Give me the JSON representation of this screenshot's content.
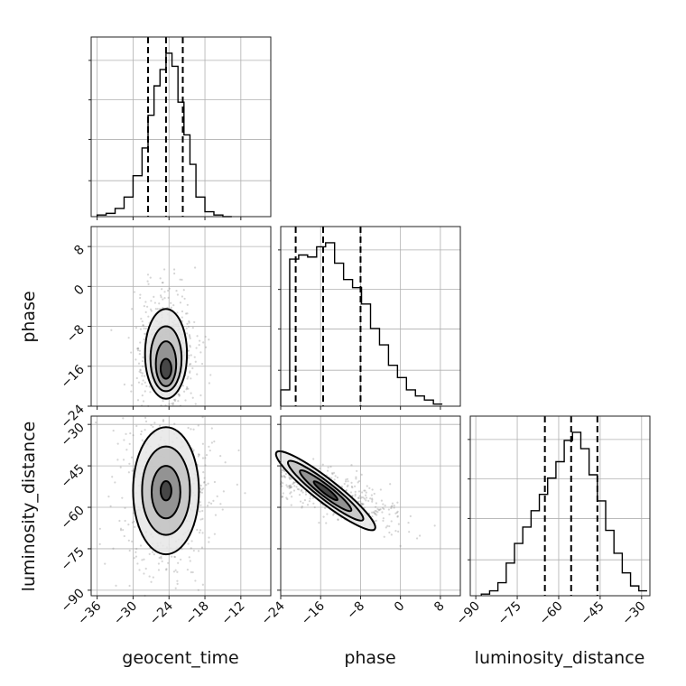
{
  "chart_data": {
    "type": "corner",
    "parameters": [
      "geocent_time",
      "phase",
      "luminosity_distance"
    ],
    "axis_labels": {
      "geocent_time": "geocent_time",
      "phase": "phase",
      "luminosity_distance": "luminosity_distance"
    },
    "ranges": {
      "geocent_time": [
        -37,
        -7
      ],
      "phase": [
        -24,
        12
      ],
      "luminosity_distance": [
        -92,
        -27
      ]
    },
    "ticks": {
      "geocent_time": [
        "−36",
        "−30",
        "−24",
        "−18",
        "−12"
      ],
      "phase": [
        "−24",
        "−16",
        "−8",
        "0",
        "8"
      ],
      "luminosity_distance": [
        "−90",
        "−75",
        "−60",
        "−45",
        "−30"
      ]
    },
    "tick_values": {
      "geocent_time": [
        -36,
        -30,
        -24,
        -18,
        -12
      ],
      "phase": [
        -24,
        -16,
        -8,
        0,
        8
      ],
      "luminosity_distance": [
        -90,
        -75,
        -60,
        -45,
        -30
      ]
    },
    "quantiles": {
      "geocent_time": [
        -27.5,
        -24.5,
        -21.7
      ],
      "phase": [
        -21.0,
        -15.5,
        -8.0
      ],
      "luminosity_distance": [
        -65.0,
        -55.5,
        -46.0
      ]
    },
    "histograms": {
      "geocent_time": {
        "bins": [
          -36,
          -34.5,
          -33,
          -31.5,
          -30,
          -28.5,
          -27.5,
          -26.5,
          -25.5,
          -24.5,
          -23.5,
          -22.5,
          -21.5,
          -20.5,
          -19.5,
          -18,
          -16.5,
          -15,
          -13.5
        ],
        "counts": [
          0.01,
          0.02,
          0.05,
          0.12,
          0.25,
          0.42,
          0.62,
          0.8,
          0.9,
          1.0,
          0.92,
          0.7,
          0.5,
          0.32,
          0.12,
          0.03,
          0.01,
          0.0
        ]
      },
      "phase": {
        "bins": [
          -24,
          -22.2,
          -20.4,
          -18.6,
          -16.8,
          -15,
          -13.2,
          -11.4,
          -9.6,
          -7.8,
          -6,
          -4.2,
          -2.4,
          -0.6,
          1.2,
          3.0,
          4.8,
          6.6,
          8.4
        ],
        "counts": [
          0.08,
          0.72,
          0.74,
          0.73,
          0.78,
          0.8,
          0.7,
          0.62,
          0.58,
          0.5,
          0.38,
          0.3,
          0.2,
          0.14,
          0.08,
          0.05,
          0.03,
          0.01
        ]
      },
      "luminosity_distance": {
        "bins": [
          -88,
          -85,
          -82,
          -79,
          -76,
          -73,
          -70,
          -67,
          -64,
          -61,
          -58,
          -55,
          -52,
          -49,
          -46,
          -43,
          -40,
          -37,
          -34,
          -31,
          -28
        ],
        "counts": [
          0.01,
          0.03,
          0.08,
          0.2,
          0.32,
          0.42,
          0.52,
          0.62,
          0.72,
          0.82,
          0.95,
          1.0,
          0.9,
          0.74,
          0.58,
          0.4,
          0.26,
          0.14,
          0.06,
          0.03
        ]
      }
    },
    "joint": [
      {
        "x": "geocent_time",
        "y": "phase",
        "center": [
          -24.5,
          -15.0
        ],
        "levels": [
          {
            "rx": 3.5,
            "ry": 9.0,
            "cy": -13.5
          },
          {
            "rx": 2.6,
            "ry": 6.5,
            "cy": -14.5
          },
          {
            "rx": 1.7,
            "ry": 4.5,
            "cy": -15.5
          },
          {
            "rx": 0.9,
            "ry": 2.0,
            "cy": -16.5
          }
        ]
      },
      {
        "x": "geocent_time",
        "y": "luminosity_distance",
        "center": [
          -24.5,
          -54.0
        ],
        "levels": [
          {
            "rx": 5.5,
            "ry": 23.0,
            "cy": -54.0
          },
          {
            "rx": 4.0,
            "ry": 16.0,
            "cy": -54.0
          },
          {
            "rx": 2.4,
            "ry": 9.5,
            "cy": -54.5
          },
          {
            "rx": 0.9,
            "ry": 3.5,
            "cy": -54.0
          }
        ]
      },
      {
        "x": "phase",
        "y": "luminosity_distance",
        "center": [
          -15.0,
          -54.0
        ],
        "angle_deg": -38,
        "levels": [
          {
            "rx": 12.5,
            "ry": 4.2
          },
          {
            "rx": 9.5,
            "ry": 3.0
          },
          {
            "rx": 6.5,
            "ry": 2.0
          },
          {
            "rx": 3.0,
            "ry": 1.0
          }
        ]
      }
    ],
    "grid": true
  }
}
